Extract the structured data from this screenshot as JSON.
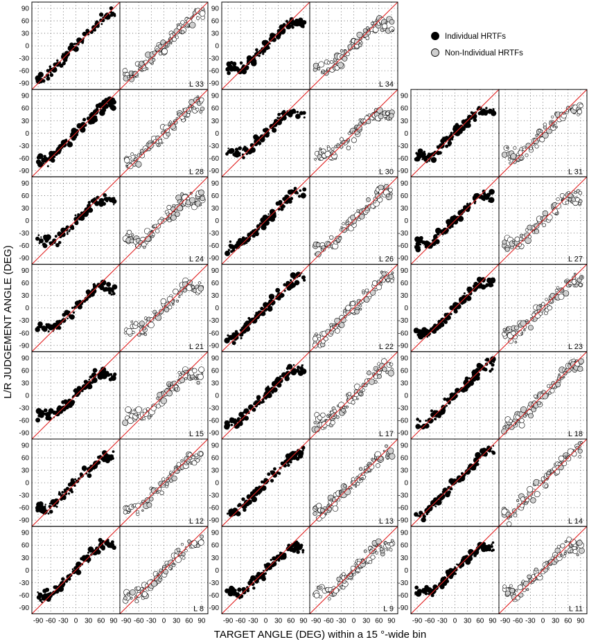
{
  "chart_data": {
    "type": "scatter",
    "xlabel": "TARGET ANGLE (DEG)  within a 15 °-wide bin",
    "ylabel": "L/R  JUDGEMENT ANGLE (DEG)",
    "ticks": [
      -90,
      -60,
      -30,
      0,
      30,
      60,
      90
    ],
    "tick_labels": [
      "-90",
      "-60",
      "-30",
      "0",
      "30",
      "60",
      "90"
    ],
    "y_tick_labels": [
      "90",
      "60",
      "30",
      "0",
      "-30",
      "-60",
      "-90"
    ],
    "x_tick_label_text": "-90-60-30   0   30 60 90",
    "xlim": [
      -105,
      105
    ],
    "ylim": [
      -105,
      105
    ],
    "reference_line": "y = x",
    "grid": true,
    "legend": {
      "position": "top-right",
      "entries": [
        {
          "label": "Individual HRTFs",
          "color": "#000000"
        },
        {
          "label": "Non-Individual HRTFs",
          "color": "#cfcfcf"
        }
      ]
    },
    "colors": {
      "individual": "#000000",
      "non_individual": "#cfcfcf",
      "reference": "#e02020",
      "grid": "#555555"
    },
    "listeners": [
      {
        "label": "L 33",
        "group": 0,
        "row": 0
      },
      {
        "label": "L 34",
        "group": 1,
        "row": 0
      },
      {
        "label": "L 28",
        "group": 0,
        "row": 1
      },
      {
        "label": "L 30",
        "group": 1,
        "row": 1
      },
      {
        "label": "L 31",
        "group": 2,
        "row": 1
      },
      {
        "label": "L 24",
        "group": 0,
        "row": 2
      },
      {
        "label": "L 26",
        "group": 1,
        "row": 2
      },
      {
        "label": "L 27",
        "group": 2,
        "row": 2
      },
      {
        "label": "L 21",
        "group": 0,
        "row": 3
      },
      {
        "label": "L 22",
        "group": 1,
        "row": 3
      },
      {
        "label": "L 23",
        "group": 2,
        "row": 3
      },
      {
        "label": "L 15",
        "group": 0,
        "row": 4
      },
      {
        "label": "L 17",
        "group": 1,
        "row": 4
      },
      {
        "label": "L 18",
        "group": 2,
        "row": 4
      },
      {
        "label": "L 12",
        "group": 0,
        "row": 5
      },
      {
        "label": "L 13",
        "group": 1,
        "row": 5
      },
      {
        "label": "L 14",
        "group": 2,
        "row": 5
      },
      {
        "label": "L 8",
        "group": 0,
        "row": 6
      },
      {
        "label": "L 9",
        "group": 1,
        "row": 6
      },
      {
        "label": "L 11",
        "group": 2,
        "row": 6
      }
    ],
    "series": [
      {
        "name": "Individual HRTFs",
        "marker": "filled-black"
      },
      {
        "name": "Non-Individual HRTFs",
        "marker": "open-gray"
      }
    ]
  }
}
